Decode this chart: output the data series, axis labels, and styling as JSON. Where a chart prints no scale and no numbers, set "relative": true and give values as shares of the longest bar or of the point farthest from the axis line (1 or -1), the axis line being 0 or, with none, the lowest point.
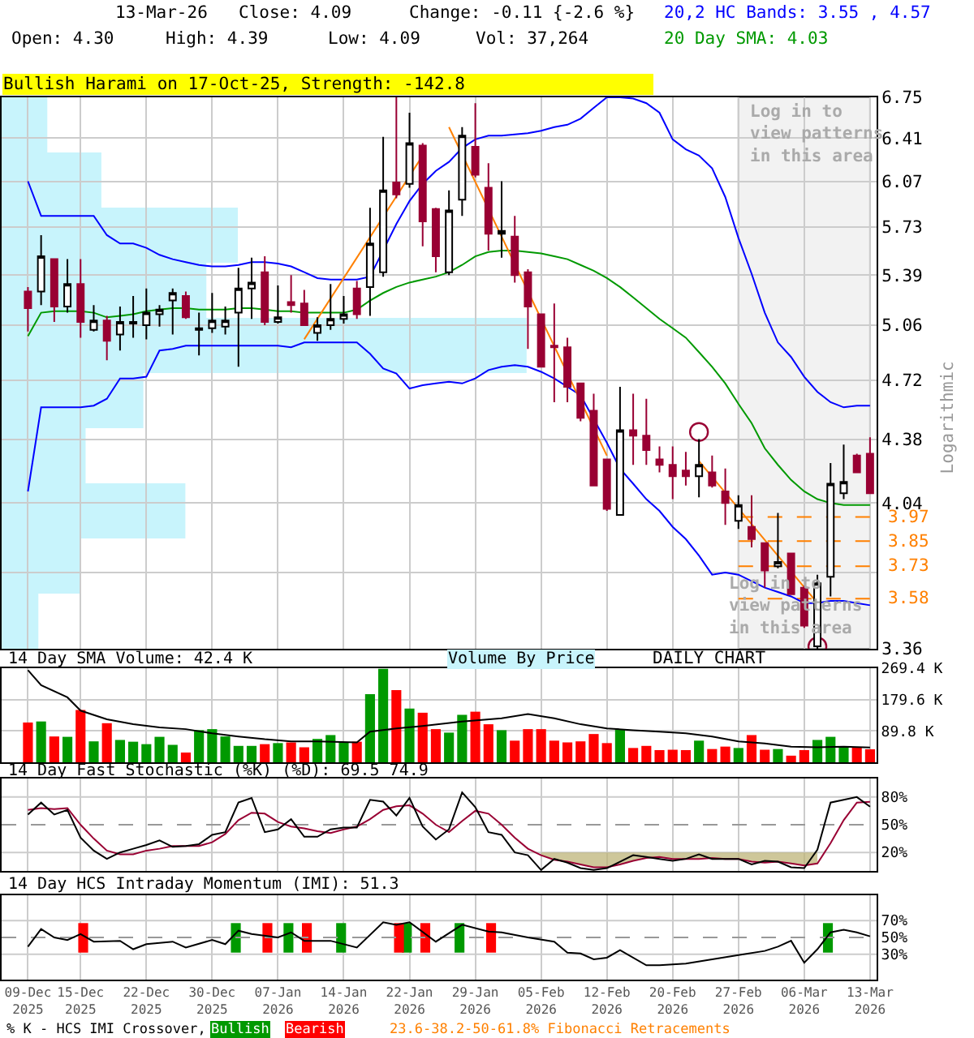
{
  "chart_data": [
    {
      "type": "candlestick",
      "title": "Bullish Harami on 17-Oct-25, Strength: -142.8",
      "ylabel": "Logarithmic",
      "categories": [
        "09-Dec\n2025",
        null,
        null,
        null,
        "15-Dec\n2025",
        null,
        null,
        null,
        null,
        "22-Dec\n2025",
        null,
        null,
        null,
        null,
        "30-Dec\n2025",
        null,
        null,
        null,
        null,
        "07-Jan\n2026",
        null,
        null,
        null,
        null,
        "14-Jan\n2026",
        null,
        null,
        null,
        null,
        "22-Jan\n2026",
        null,
        null,
        null,
        null,
        "29-Jan\n2026",
        null,
        null,
        null,
        null,
        "05-Feb\n2026",
        null,
        null,
        null,
        null,
        "12-Feb\n2026",
        null,
        null,
        null,
        null,
        "20-Feb\n2026",
        null,
        null,
        null,
        null,
        "27-Feb\n2026",
        null,
        null,
        null,
        null,
        "06-Mar\n2026",
        null,
        null,
        null,
        null,
        "13-Mar\n2026"
      ],
      "ohlc": [
        [
          5.28,
          5.31,
          5.02,
          5.17
        ],
        [
          5.28,
          5.67,
          5.19,
          5.52
        ],
        [
          5.5,
          5.5,
          5.08,
          5.18
        ],
        [
          5.18,
          5.5,
          5.14,
          5.33
        ],
        [
          5.33,
          5.5,
          4.98,
          5.08
        ],
        [
          5.03,
          5.19,
          5.02,
          5.09
        ],
        [
          5.09,
          5.12,
          4.84,
          4.96
        ],
        [
          5.0,
          5.18,
          4.9,
          5.08
        ],
        [
          5.07,
          5.25,
          4.98,
          5.08
        ],
        [
          5.06,
          5.3,
          4.97,
          5.14
        ],
        [
          5.13,
          5.19,
          5.05,
          5.16
        ],
        [
          5.22,
          5.3,
          5.0,
          5.27
        ],
        [
          5.25,
          5.28,
          5.1,
          5.11
        ],
        [
          5.03,
          5.14,
          4.87,
          5.04
        ],
        [
          5.04,
          5.27,
          5.01,
          5.09
        ],
        [
          5.05,
          5.18,
          5.0,
          5.09
        ],
        [
          5.14,
          5.44,
          4.8,
          5.3
        ],
        [
          5.3,
          5.51,
          5.1,
          5.34
        ],
        [
          5.41,
          5.52,
          5.06,
          5.08
        ],
        [
          5.08,
          5.32,
          5.07,
          5.11
        ],
        [
          5.21,
          5.39,
          5.14,
          5.19
        ],
        [
          5.2,
          5.29,
          5.06,
          5.06
        ],
        [
          5.01,
          5.11,
          4.96,
          5.06
        ],
        [
          5.06,
          5.33,
          5.03,
          5.1
        ],
        [
          5.1,
          5.25,
          5.07,
          5.13
        ],
        [
          5.3,
          5.35,
          5.1,
          5.13
        ],
        [
          5.31,
          5.87,
          5.12,
          5.61
        ],
        [
          5.41,
          6.42,
          5.38,
          6.0
        ],
        [
          6.06,
          6.75,
          5.94,
          5.97
        ],
        [
          6.05,
          6.62,
          6.02,
          6.37
        ],
        [
          6.35,
          6.37,
          5.59,
          5.77
        ],
        [
          5.86,
          5.87,
          5.41,
          5.52
        ],
        [
          5.41,
          6.0,
          5.39,
          5.85
        ],
        [
          5.93,
          6.5,
          5.81,
          6.43
        ],
        [
          6.34,
          6.7,
          6.1,
          6.12
        ],
        [
          6.02,
          6.21,
          5.56,
          5.68
        ],
        [
          5.68,
          6.07,
          5.51,
          5.7
        ],
        [
          5.66,
          5.81,
          5.34,
          5.39
        ],
        [
          5.41,
          5.43,
          4.91,
          5.18
        ],
        [
          5.13,
          5.13,
          4.8,
          4.8
        ],
        [
          4.93,
          5.2,
          4.59,
          4.92
        ],
        [
          4.92,
          4.98,
          4.59,
          4.68
        ],
        [
          4.7,
          4.7,
          4.48,
          4.5
        ],
        [
          4.54,
          4.64,
          4.13,
          4.13
        ],
        [
          4.27,
          4.27,
          4.0,
          4.01
        ],
        [
          3.98,
          4.68,
          3.98,
          4.43
        ],
        [
          4.43,
          4.64,
          4.24,
          4.4
        ],
        [
          4.4,
          4.61,
          4.24,
          4.32
        ],
        [
          4.27,
          4.34,
          4.2,
          4.24
        ],
        [
          4.24,
          4.34,
          4.06,
          4.18
        ],
        [
          4.21,
          4.31,
          4.13,
          4.18
        ],
        [
          4.18,
          4.38,
          4.07,
          4.24
        ],
        [
          4.2,
          4.29,
          4.12,
          4.13
        ],
        [
          4.1,
          4.22,
          3.93,
          4.04
        ],
        [
          3.95,
          4.08,
          3.91,
          4.03
        ],
        [
          3.92,
          4.08,
          3.82,
          3.86
        ],
        [
          3.84,
          3.84,
          3.63,
          3.71
        ],
        [
          3.73,
          3.99,
          3.72,
          3.75
        ],
        [
          3.79,
          3.79,
          3.6,
          3.6
        ],
        [
          3.63,
          3.64,
          3.45,
          3.46
        ],
        [
          3.37,
          3.69,
          3.36,
          3.65
        ],
        [
          3.68,
          4.25,
          3.59,
          4.14
        ],
        [
          4.09,
          4.35,
          4.06,
          4.15
        ],
        [
          4.29,
          4.3,
          4.2,
          4.2
        ],
        [
          4.3,
          4.39,
          4.09,
          4.09
        ]
      ],
      "series": [
        {
          "type": "line",
          "name": "20,2 HC Bands: 3.55 , 4.57",
          "color": "#0000ff",
          "values": [
            6.07,
            5.81,
            5.81,
            5.81,
            5.81,
            5.81,
            5.67,
            5.61,
            5.61,
            5.58,
            5.53,
            5.5,
            5.48,
            5.46,
            5.45,
            5.45,
            5.46,
            5.48,
            5.48,
            5.47,
            5.45,
            5.41,
            5.37,
            5.36,
            5.36,
            5.36,
            5.38,
            null,
            5.75,
            5.92,
            6.05,
            6.15,
            6.22,
            6.33,
            6.4,
            6.43,
            6.43,
            6.44,
            6.45,
            6.47,
            6.5,
            6.52,
            6.57,
            6.66,
            6.75,
            6.75,
            6.74,
            6.7,
            6.62,
            6.4,
            6.32,
            6.27,
            6.17,
            5.95,
            5.65,
            5.4,
            5.14,
            4.95,
            4.86,
            4.74,
            4.65,
            4.59,
            4.56,
            4.57,
            4.57
          ]
        },
        {
          "type": "line",
          "color": "#0000ff",
          "values": [
            4.1,
            4.56,
            4.56,
            4.56,
            4.56,
            4.57,
            4.61,
            4.73,
            4.73,
            4.74,
            4.9,
            4.91,
            4.93,
            4.93,
            4.93,
            4.93,
            4.93,
            4.93,
            4.93,
            4.93,
            4.92,
            4.95,
            4.95,
            4.95,
            4.95,
            4.95,
            4.88,
            4.79,
            4.76,
            4.67,
            4.69,
            4.7,
            4.71,
            4.7,
            4.73,
            4.78,
            4.8,
            4.81,
            4.8,
            4.77,
            4.73,
            4.68,
            4.63,
            null,
            4.36,
            4.22,
            4.14,
            4.06,
            4.0,
            3.92,
            3.86,
            3.78,
            3.69,
            3.7,
            3.69,
            3.66,
            3.63,
            3.61,
            3.59,
            3.56,
            3.56,
            3.57,
            3.57,
            3.56,
            3.55
          ]
        },
        {
          "type": "line",
          "name": "20 Day SMA: 4.03",
          "color": "#009900",
          "values": [
            4.99,
            5.14,
            5.15,
            5.15,
            5.15,
            5.14,
            5.11,
            5.12,
            5.13,
            5.15,
            5.16,
            5.17,
            5.17,
            5.16,
            5.16,
            5.16,
            5.17,
            5.17,
            5.16,
            5.15,
            5.15,
            5.14,
            5.14,
            5.14,
            5.14,
            5.16,
            5.22,
            5.27,
            5.31,
            5.34,
            5.36,
            5.38,
            5.41,
            5.46,
            5.52,
            5.55,
            5.56,
            5.56,
            5.55,
            5.54,
            5.52,
            5.5,
            5.46,
            5.42,
            5.37,
            5.31,
            5.24,
            5.17,
            5.1,
            5.04,
            4.98,
            4.89,
            4.8,
            4.7,
            4.58,
            4.47,
            4.33,
            4.24,
            4.16,
            4.1,
            4.06,
            4.04,
            4.03,
            4.03,
            4.03
          ]
        },
        {
          "type": "line",
          "color": "#ff8000",
          "values": [
            null,
            null,
            null,
            null,
            null,
            null,
            null,
            null,
            null,
            null,
            null,
            null,
            null,
            null,
            null,
            null,
            null,
            null,
            null,
            null,
            null,
            4.97,
            null,
            null,
            null,
            null,
            null,
            null,
            null,
            null,
            6.27,
            null,
            null,
            null,
            null,
            null,
            null,
            null,
            null,
            null,
            null,
            null,
            null,
            null,
            null,
            null,
            null,
            null,
            null,
            null,
            null,
            null,
            null,
            null,
            null,
            null,
            null,
            null,
            null,
            null,
            null,
            null,
            null,
            null,
            null
          ]
        },
        {
          "type": "line",
          "color": "#ff8000",
          "values": [
            null,
            null,
            null,
            null,
            null,
            null,
            null,
            null,
            null,
            null,
            null,
            null,
            null,
            null,
            null,
            null,
            null,
            null,
            null,
            null,
            null,
            null,
            null,
            null,
            null,
            null,
            null,
            null,
            null,
            null,
            null,
            null,
            6.5,
            null,
            null,
            null,
            null,
            null,
            null,
            null,
            null,
            null,
            null,
            null,
            4.29,
            null,
            null,
            null,
            null,
            null,
            null,
            null,
            null,
            null,
            null,
            null,
            null,
            null,
            null,
            null,
            null,
            null,
            null,
            null,
            null
          ]
        },
        {
          "type": "line",
          "color": "#ff8000",
          "values": [
            null,
            null,
            null,
            null,
            null,
            null,
            null,
            null,
            null,
            null,
            null,
            null,
            null,
            null,
            null,
            null,
            null,
            null,
            null,
            null,
            null,
            null,
            null,
            null,
            null,
            null,
            null,
            null,
            null,
            null,
            null,
            null,
            null,
            null,
            null,
            null,
            null,
            null,
            null,
            null,
            null,
            null,
            null,
            null,
            null,
            null,
            null,
            null,
            null,
            null,
            null,
            4.26,
            null,
            null,
            null,
            null,
            null,
            null,
            null,
            null,
            3.56,
            null,
            null,
            null,
            null
          ]
        },
        {
          "type": "scatter",
          "marker": "circle",
          "color": "#990033",
          "values": [
            null,
            null,
            null,
            null,
            null,
            null,
            null,
            null,
            null,
            null,
            null,
            null,
            null,
            null,
            null,
            null,
            null,
            null,
            null,
            null,
            null,
            null,
            null,
            null,
            null,
            null,
            null,
            null,
            null,
            null,
            null,
            null,
            null,
            null,
            null,
            null,
            null,
            null,
            null,
            null,
            null,
            null,
            null,
            null,
            null,
            null,
            null,
            null,
            null,
            null,
            null,
            4.42,
            null,
            null,
            null,
            null,
            null,
            null,
            null,
            null,
            3.37,
            null,
            null,
            null,
            null
          ]
        }
      ],
      "log": true,
      "ylim": [
        3.36,
        6.75
      ],
      "yticks": [
        3.36,
        {
          "value": 3.7,
          "label": null
        },
        4.04,
        4.38,
        4.72,
        5.06,
        5.39,
        5.73,
        6.07,
        6.41,
        6.75
      ],
      "grid": true,
      "legend": "top right",
      "tick_labels": "y",
      "bands": [
        {
          "axis": "x",
          "from": "27-Feb\n2026",
          "to": "13-Mar\n2026",
          "label": "Log in to\nview patterns\nin this area",
          "color": "#f2f2f2"
        }
      ],
      "ref_lines": [
        {
          "axis": "y",
          "value": 3.97,
          "label": "3.97",
          "color": "#ff8000",
          "line_style": "dashed"
        },
        {
          "axis": "y",
          "value": 3.85,
          "label": "3.85",
          "color": "#ff8000",
          "line_style": "dashed"
        },
        {
          "axis": "y",
          "value": 3.73,
          "label": "3.73",
          "color": "#ff8000",
          "line_style": "dashed"
        },
        {
          "axis": "y",
          "value": 3.58,
          "label": "3.58",
          "color": "#ff8000",
          "line_style": "dashed"
        }
      ],
      "annotations": [
        "13-Mar-26",
        "Close: 4.09",
        "Change: -0.11 {-2.6 %}",
        "Open: 4.30",
        "High: 4.39",
        "Low: 4.09",
        "Vol: 37,264",
        "DAILY CHART",
        "Log in to\nview patterns\nin this area",
        "23.6-38.2-50-61.8% Fibonacci Retracements"
      ]
    },
    {
      "type": "bar",
      "orientation": "horizontal",
      "relative": true,
      "title": "Volume By Price",
      "color": "#c8f4fc",
      "categories": [
        null,
        null,
        null,
        null,
        null,
        null,
        null,
        null,
        null,
        null
      ],
      "values": [
        0.087,
        0.19,
        0.45,
        0.39,
        1,
        0.27,
        0.16,
        0.35,
        0.15,
        0.07
      ]
    },
    {
      "type": "bar",
      "title": "14 Day SMA Volume: 42.4 K",
      "categories": [
        "09-Dec\n2025",
        null,
        null,
        null,
        "15-Dec\n2025",
        null,
        null,
        null,
        null,
        "22-Dec\n2025",
        null,
        null,
        null,
        null,
        "30-Dec\n2025",
        null,
        null,
        null,
        null,
        "07-Jan\n2026",
        null,
        null,
        null,
        null,
        "14-Jan\n2026",
        null,
        null,
        null,
        null,
        "22-Jan\n2026",
        null,
        null,
        null,
        null,
        "29-Jan\n2026",
        null,
        null,
        null,
        null,
        "05-Feb\n2026",
        null,
        null,
        null,
        null,
        "12-Feb\n2026",
        null,
        null,
        null,
        null,
        "20-Feb\n2026",
        null,
        null,
        null,
        null,
        "27-Feb\n2026",
        null,
        null,
        null,
        null,
        "06-Mar\n2026",
        null,
        null,
        null,
        null,
        "13-Mar\n2026"
      ],
      "series": [
        {
          "type": "bar",
          "values": [
            114,
            117,
            74,
            73,
            150,
            60,
            112,
            64,
            59,
            52,
            73,
            50,
            28,
            92,
            95,
            74,
            47,
            47,
            52,
            55,
            57,
            43,
            67,
            78,
            57,
            59,
            195,
            268,
            207,
            154,
            142,
            95,
            85,
            136,
            145,
            109,
            92,
            62,
            95,
            95,
            62,
            57,
            60,
            81,
            55,
            95,
            41,
            47,
            35,
            36,
            35,
            62,
            38,
            45,
            41,
            78,
            36,
            38,
            19,
            35,
            64,
            73,
            43,
            43,
            37.3
          ],
          "colors": [
            "#ff0000",
            "#009900",
            "#ff0000",
            "#009900",
            "#ff0000",
            "#009900",
            "#ff0000",
            "#009900",
            "#009900",
            "#009900",
            "#009900",
            "#009900",
            "#ff0000",
            "#009900",
            "#009900",
            "#009900",
            "#009900",
            "#009900",
            "#ff0000",
            "#009900",
            "#ff0000",
            "#ff0000",
            "#009900",
            "#009900",
            "#009900",
            "#ff0000",
            "#009900",
            "#009900",
            "#ff0000",
            "#009900",
            "#ff0000",
            "#ff0000",
            "#009900",
            "#009900",
            "#ff0000",
            "#ff0000",
            "#009900",
            "#ff0000",
            "#ff0000",
            "#ff0000",
            "#ff0000",
            "#ff0000",
            "#ff0000",
            "#ff0000",
            "#ff0000",
            "#009900",
            "#ff0000",
            "#ff0000",
            "#ff0000",
            "#ff0000",
            "#ff0000",
            "#009900",
            "#ff0000",
            "#ff0000",
            "#009900",
            "#ff0000",
            "#ff0000",
            "#009900",
            "#ff0000",
            "#ff0000",
            "#009900",
            "#009900",
            "#009900",
            "#ff0000",
            "#ff0000"
          ]
        },
        {
          "type": "line",
          "color": "#000000",
          "values": [
            264,
            221,
            null,
            186,
            148,
            null,
            123,
            null,
            109,
            null,
            100,
            null,
            95,
            null,
            83,
            null,
            74,
            null,
            66,
            null,
            60,
            null,
            60,
            null,
            null,
            57,
            88,
            null,
            97,
            null,
            104,
            null,
            null,
            117,
            null,
            null,
            126,
            null,
            138,
            null,
            126,
            null,
            109,
            null,
            97,
            null,
            92,
            null,
            88,
            null,
            83,
            null,
            74,
            null,
            60,
            null,
            54,
            null,
            45,
            null,
            43,
            null,
            45,
            null,
            42.4
          ]
        }
      ],
      "ylim": [
        0,
        269.4
      ],
      "yticks": [
        {
          "value": 89.8,
          "label": "89.8 K"
        },
        {
          "value": 179.6,
          "label": "179.6 K"
        },
        {
          "value": 269.4,
          "label": "269.4 K"
        }
      ],
      "grid": true,
      "tick_labels": "y"
    },
    {
      "type": "line",
      "title": "14 Day Fast Stochastic (%K) (%D): 69.5 74.9",
      "categories": [
        "09-Dec\n2025",
        null,
        null,
        null,
        "15-Dec\n2025",
        null,
        null,
        null,
        null,
        "22-Dec\n2025",
        null,
        null,
        null,
        null,
        "30-Dec\n2025",
        null,
        null,
        null,
        null,
        "07-Jan\n2026",
        null,
        null,
        null,
        null,
        "14-Jan\n2026",
        null,
        null,
        null,
        null,
        "22-Jan\n2026",
        null,
        null,
        null,
        null,
        "29-Jan\n2026",
        null,
        null,
        null,
        null,
        "05-Feb\n2026",
        null,
        null,
        null,
        null,
        "12-Feb\n2026",
        null,
        null,
        null,
        null,
        "20-Feb\n2026",
        null,
        null,
        null,
        null,
        "27-Feb\n2026",
        null,
        null,
        null,
        null,
        "06-Mar\n2026",
        null,
        null,
        null,
        null,
        "13-Mar\n2026"
      ],
      "series": [
        {
          "color": "#990033",
          "values": [
            66,
            68,
            67,
            68,
            50,
            35,
            22,
            18,
            18,
            22,
            24,
            27,
            27,
            27,
            31,
            40,
            55,
            63,
            62,
            53,
            48,
            46,
            43,
            41,
            45,
            48,
            56,
            66,
            70,
            71,
            62,
            50,
            42,
            54,
            65,
            62,
            50,
            36,
            24,
            17,
            12,
            10,
            7,
            4,
            4,
            7,
            11,
            14,
            15,
            13,
            13,
            13,
            14,
            13,
            13,
            10,
            9,
            10,
            8,
            6,
            8,
            30,
            55,
            74,
            74.9
          ],
          "lower": [
            null,
            null,
            null,
            null,
            null,
            null,
            null,
            null,
            null,
            null,
            null,
            null,
            null,
            null,
            null,
            null,
            null,
            null,
            null,
            null,
            null,
            null,
            null,
            null,
            null,
            null,
            null,
            null,
            null,
            null,
            null,
            null,
            null,
            null,
            null,
            null,
            null,
            null,
            null,
            17,
            12,
            10,
            7,
            4,
            4,
            7,
            11,
            14,
            15,
            13,
            13,
            13,
            14,
            13,
            13,
            10,
            9,
            10,
            8,
            6,
            8,
            null,
            null,
            null,
            null
          ],
          "upper": [
            null,
            null,
            null,
            null,
            null,
            null,
            null,
            null,
            null,
            null,
            null,
            null,
            null,
            null,
            null,
            null,
            null,
            null,
            null,
            null,
            null,
            null,
            null,
            null,
            null,
            null,
            null,
            null,
            null,
            null,
            null,
            null,
            null,
            null,
            null,
            null,
            null,
            null,
            null,
            20,
            20,
            20,
            20,
            20,
            20,
            20,
            20,
            20,
            20,
            20,
            20,
            20,
            20,
            20,
            20,
            20,
            20,
            20,
            20,
            20,
            20,
            null,
            null,
            null,
            null
          ]
        },
        {
          "color": "#000000",
          "values": [
            61,
            74,
            61,
            66,
            36,
            22,
            13,
            20,
            24,
            28,
            33,
            26,
            27,
            29,
            39,
            42,
            74,
            79,
            42,
            45,
            56,
            37,
            37,
            45,
            47,
            47,
            77,
            75,
            60,
            79,
            48,
            34,
            45,
            85,
            69,
            42,
            39,
            20,
            17,
            1,
            13,
            9,
            3,
            1,
            3,
            10,
            17,
            15,
            13,
            11,
            13,
            18,
            13,
            13,
            13,
            7,
            11,
            10,
            4,
            3,
            23,
            74,
            77,
            80,
            69.5
          ]
        }
      ],
      "ylim": [
        0,
        100
      ],
      "yticks": [
        {
          "value": 20,
          "label": "20%"
        },
        {
          "value": 50,
          "label": "50%"
        },
        {
          "value": 80,
          "label": "80%"
        }
      ],
      "ref_lines": [
        {
          "axis": "y",
          "value": 50,
          "color": "#999999",
          "line_style": "dashed"
        }
      ],
      "grid": true,
      "tick_labels": "y"
    },
    {
      "type": "line",
      "title": "14 Day HCS Intraday Momentum (IMI): 51.3",
      "categories": [
        "09-Dec\n2025",
        null,
        null,
        null,
        "15-Dec\n2025",
        null,
        null,
        null,
        null,
        "22-Dec\n2025",
        null,
        null,
        null,
        null,
        "30-Dec\n2025",
        null,
        null,
        null,
        null,
        "07-Jan\n2026",
        null,
        null,
        null,
        null,
        "14-Jan\n2026",
        null,
        null,
        null,
        null,
        "22-Jan\n2026",
        null,
        null,
        null,
        null,
        "29-Jan\n2026",
        null,
        null,
        null,
        null,
        "05-Feb\n2026",
        null,
        null,
        null,
        null,
        "12-Feb\n2026",
        null,
        null,
        null,
        null,
        "20-Feb\n2026",
        null,
        null,
        null,
        null,
        "27-Feb\n2026",
        null,
        null,
        null,
        null,
        "06-Mar\n2026",
        null,
        null,
        null,
        null,
        "13-Mar\n2026"
      ],
      "series": [
        {
          "type": "bar",
          "name": "Bullish",
          "color": "#009900",
          "values": [
            null,
            null,
            null,
            null,
            null,
            null,
            null,
            null,
            null,
            null,
            null,
            null,
            null,
            null,
            null,
            null,
            35,
            null,
            null,
            null,
            35,
            null,
            null,
            null,
            35,
            null,
            null,
            null,
            null,
            35,
            null,
            null,
            null,
            35,
            null,
            null,
            null,
            null,
            null,
            null,
            null,
            null,
            null,
            null,
            null,
            null,
            null,
            null,
            null,
            null,
            null,
            null,
            null,
            null,
            null,
            null,
            null,
            null,
            null,
            null,
            null,
            35,
            null,
            null,
            null
          ],
          "base": [
            null,
            null,
            null,
            null,
            null,
            null,
            null,
            null,
            null,
            null,
            null,
            null,
            null,
            null,
            null,
            null,
            32,
            null,
            null,
            null,
            32,
            null,
            null,
            null,
            32,
            null,
            null,
            null,
            null,
            32,
            null,
            null,
            null,
            32,
            null,
            null,
            null,
            null,
            null,
            null,
            null,
            null,
            null,
            null,
            null,
            null,
            null,
            null,
            null,
            null,
            null,
            null,
            null,
            null,
            null,
            null,
            null,
            null,
            null,
            null,
            null,
            32,
            null,
            null,
            null
          ]
        },
        {
          "type": "bar",
          "name": "Bearish",
          "color": "#ff0000",
          "values": [
            null,
            null,
            null,
            null,
            35,
            null,
            null,
            null,
            null,
            null,
            null,
            null,
            null,
            null,
            null,
            null,
            null,
            null,
            35,
            null,
            null,
            35,
            null,
            null,
            null,
            null,
            null,
            null,
            35,
            null,
            35,
            null,
            null,
            null,
            null,
            35,
            null,
            null,
            null,
            null,
            null,
            null,
            null,
            null,
            null,
            null,
            null,
            null,
            null,
            null,
            null,
            null,
            null,
            null,
            null,
            null,
            null,
            null,
            null,
            null,
            null,
            null,
            null,
            null,
            null
          ],
          "base": [
            null,
            null,
            null,
            null,
            32,
            null,
            null,
            null,
            null,
            null,
            null,
            null,
            null,
            null,
            null,
            null,
            null,
            null,
            32,
            null,
            null,
            32,
            null,
            null,
            null,
            null,
            null,
            null,
            32,
            null,
            32,
            null,
            null,
            null,
            null,
            32,
            null,
            null,
            null,
            null,
            null,
            null,
            null,
            null,
            null,
            null,
            null,
            null,
            null,
            null,
            null,
            null,
            null,
            null,
            null,
            null,
            null,
            null,
            null,
            null,
            null,
            null,
            null,
            null,
            null
          ]
        },
        {
          "type": "line",
          "color": "#000000",
          "values": [
            39,
            60,
            50,
            47,
            54,
            45,
            null,
            46,
            36,
            42,
            null,
            45,
            38,
            null,
            47,
            42,
            58,
            54,
            null,
            50,
            56,
            46,
            null,
            46,
            null,
            38,
            null,
            68,
            65,
            68,
            null,
            45,
            null,
            65,
            null,
            57,
            56,
            null,
            50,
            null,
            45,
            32,
            31,
            24,
            26,
            35,
            null,
            17,
            17,
            null,
            19,
            null,
            24,
            null,
            29,
            null,
            34,
            39,
            46,
            20,
            36,
            56,
            59,
            56,
            51.3
          ]
        }
      ],
      "ylim": [
        0,
        100
      ],
      "yticks": [
        {
          "value": 30,
          "label": "30%"
        },
        {
          "value": 50,
          "label": "50%"
        },
        {
          "value": 70,
          "label": "70%"
        }
      ],
      "ref_lines": [
        {
          "axis": "y",
          "value": 50,
          "color": "#999999",
          "line_style": "dashed"
        }
      ],
      "grid": true,
      "legend": "bottom",
      "legend_title": "% K - HCS IMI Crossover,"
    }
  ]
}
